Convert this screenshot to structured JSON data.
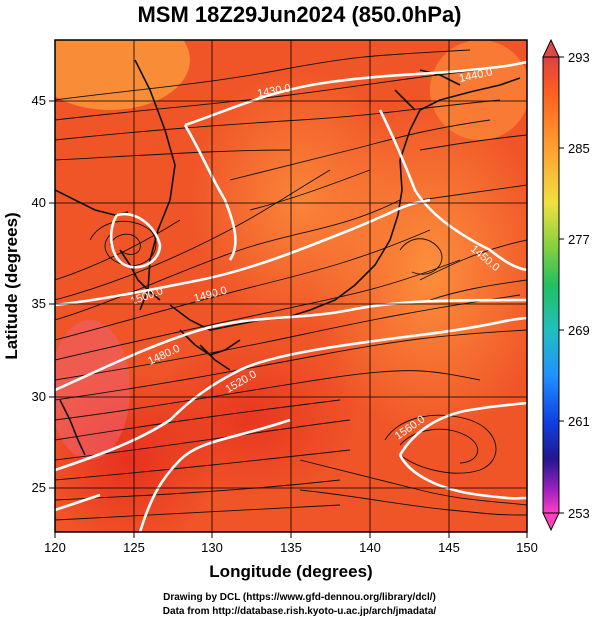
{
  "title": "MSM 18Z29Jun2024 (850.0hPa)",
  "map": {
    "xlabel": "Longitude (degrees)",
    "ylabel": "Latitude  (degrees)",
    "xlim": [
      120,
      150
    ],
    "ylim": [
      22.4,
      47.6
    ],
    "xticks": [
      "120",
      "125",
      "130",
      "135",
      "140",
      "145",
      "150"
    ],
    "yticks": [
      "25",
      "30",
      "35",
      "40",
      "45"
    ],
    "contour_labels": [
      "1430.0",
      "1440.0",
      "1450.0",
      "1500.0",
      "1490.0",
      "1480.0",
      "1520.0",
      "1560.0"
    ]
  },
  "colorbar": {
    "ticks": [
      "293",
      "285",
      "277",
      "269",
      "261",
      "253"
    ],
    "colors": [
      "#ff5080",
      "#f03020",
      "#ff8030",
      "#ffb030",
      "#e0e040",
      "#60d040",
      "#20c060",
      "#20c0c0",
      "#20a0ff",
      "#1040e0",
      "#2020a0",
      "#a020c0",
      "#ff40c0"
    ]
  },
  "footer": {
    "line1": "Drawing by DCL (https://www.gfd-dennou.org/library/dcl/)",
    "line2": "Data from http://database.rish.kyoto-u.ac.jp/arch/jmadata/"
  }
}
